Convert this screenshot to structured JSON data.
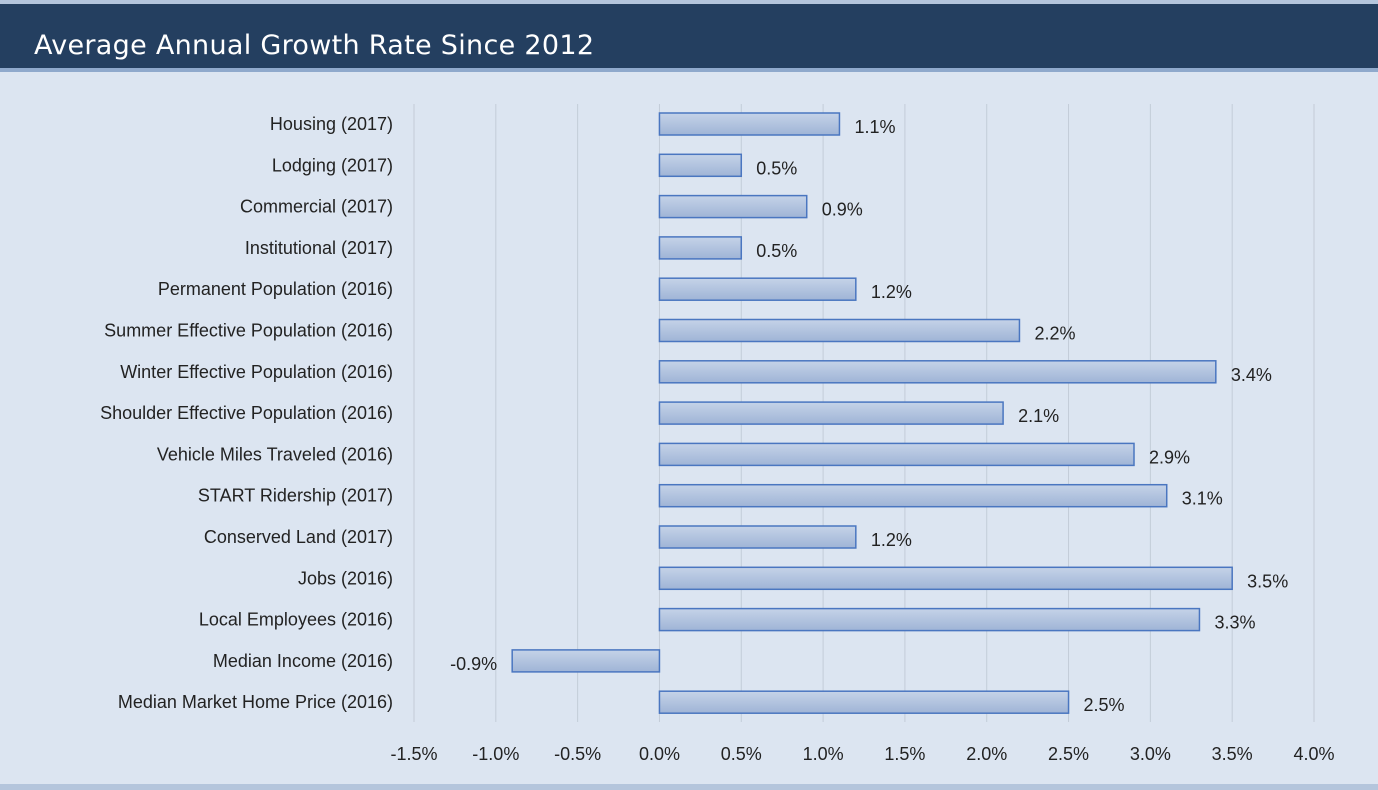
{
  "header": {
    "title": "Average Annual Growth Rate Since 2012",
    "background_color": "#243f60",
    "title_color": "#ffffff"
  },
  "chart_data": {
    "type": "bar",
    "orientation": "horizontal",
    "title": "Average Annual Growth Rate Since 2012",
    "categories": [
      "Housing (2017)",
      "Lodging (2017)",
      "Commercial (2017)",
      "Institutional (2017)",
      "Permanent Population (2016)",
      "Summer Effective Population (2016)",
      "Winter Effective Population (2016)",
      "Shoulder Effective Population (2016)",
      "Vehicle Miles Traveled (2016)",
      "START Ridership (2017)",
      "Conserved Land (2017)",
      "Jobs (2016)",
      "Local Employees (2016)",
      "Median Income (2016)",
      "Median Market Home Price (2016)"
    ],
    "values": [
      1.1,
      0.5,
      0.9,
      0.5,
      1.2,
      2.2,
      3.4,
      2.1,
      2.9,
      3.1,
      1.2,
      3.5,
      3.3,
      -0.9,
      2.5
    ],
    "data_labels": [
      "1.1%",
      "0.5%",
      "0.9%",
      "0.5%",
      "1.2%",
      "2.2%",
      "3.4%",
      "2.1%",
      "2.9%",
      "3.1%",
      "1.2%",
      "3.5%",
      "3.3%",
      "-0.9%",
      "2.5%"
    ],
    "xlim": [
      -1.5,
      4.0
    ],
    "x_ticks": [
      -1.5,
      -1.0,
      -0.5,
      0.0,
      0.5,
      1.0,
      1.5,
      2.0,
      2.5,
      3.0,
      3.5,
      4.0
    ],
    "x_tick_labels": [
      "-1.5%",
      "-1.0%",
      "-0.5%",
      "0.0%",
      "0.5%",
      "1.0%",
      "1.5%",
      "2.0%",
      "2.5%",
      "3.0%",
      "3.5%",
      "4.0%"
    ],
    "xlabel": "",
    "ylabel": "",
    "grid": "vertical",
    "legend": "none",
    "bar_fill_top": "#c5d3e8",
    "bar_fill_bottom": "#9fb4d6",
    "bar_stroke": "#4a76c0",
    "gridline_color": "#c3ccd8",
    "plot_background": "#dce5f1"
  }
}
